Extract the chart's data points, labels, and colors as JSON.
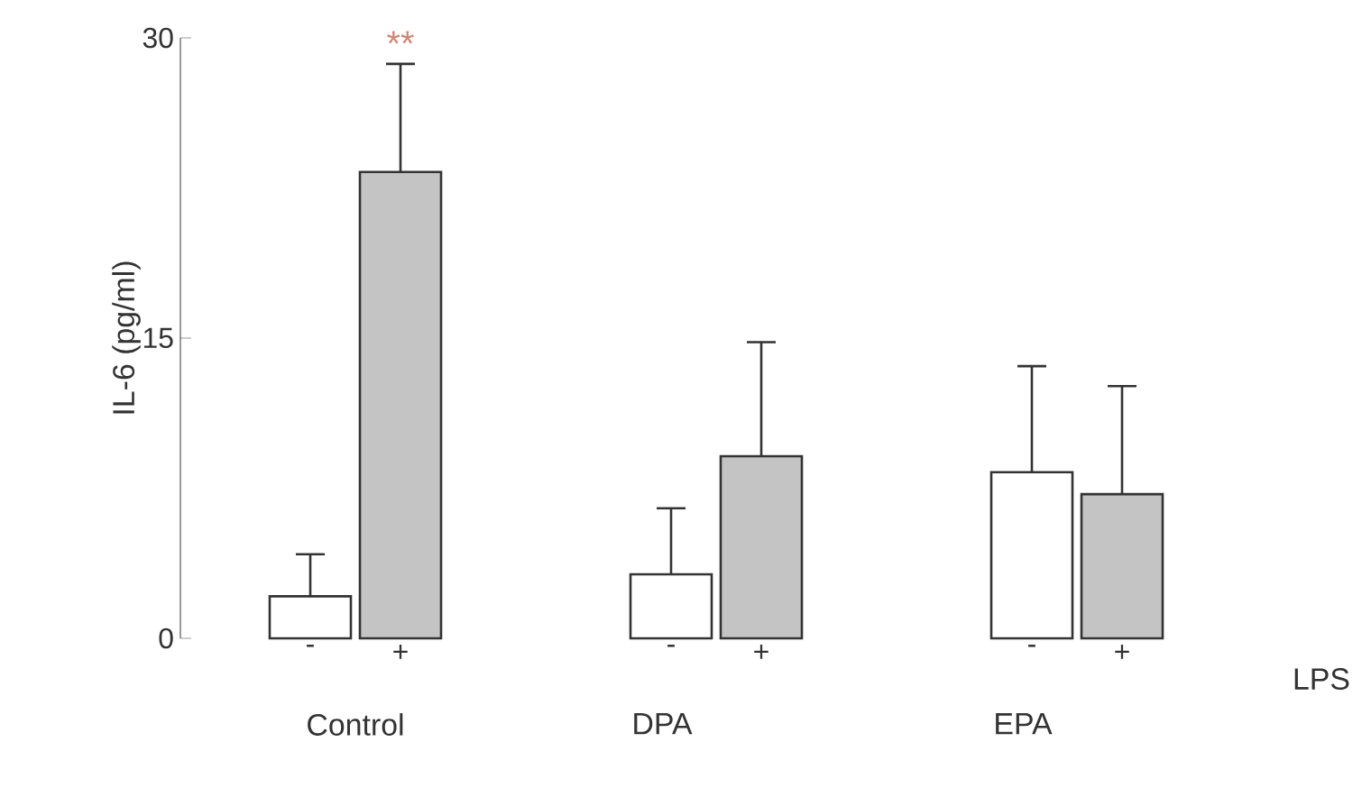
{
  "chart_data": {
    "type": "bar",
    "ylabel": "IL-6 (pg/ml)",
    "categories": [
      "-",
      "+",
      null,
      null,
      "-",
      "+",
      null,
      null,
      "-",
      "+"
    ],
    "values": [
      2.1,
      23.3,
      null,
      null,
      3.2,
      9.1,
      null,
      null,
      8.3,
      7.2
    ],
    "colors": [
      "#ffffff",
      "#c4c4c4",
      null,
      null,
      "#ffffff",
      "#c4c4c4",
      null,
      null,
      "#ffffff",
      "#c4c4c4"
    ],
    "errors": [
      [
        2.1,
        4.2
      ],
      [
        23.3,
        28.7
      ],
      null,
      null,
      [
        3.2,
        6.5
      ],
      [
        9.1,
        14.8
      ],
      null,
      null,
      [
        8.3,
        13.6
      ],
      [
        7.2,
        12.6
      ]
    ],
    "ylim": [
      0,
      30
    ],
    "yticks": [
      0,
      15,
      30
    ],
    "annotations": [
      "Control",
      "DPA",
      "EPA",
      "LPS",
      "**"
    ],
    "grid": false
  }
}
